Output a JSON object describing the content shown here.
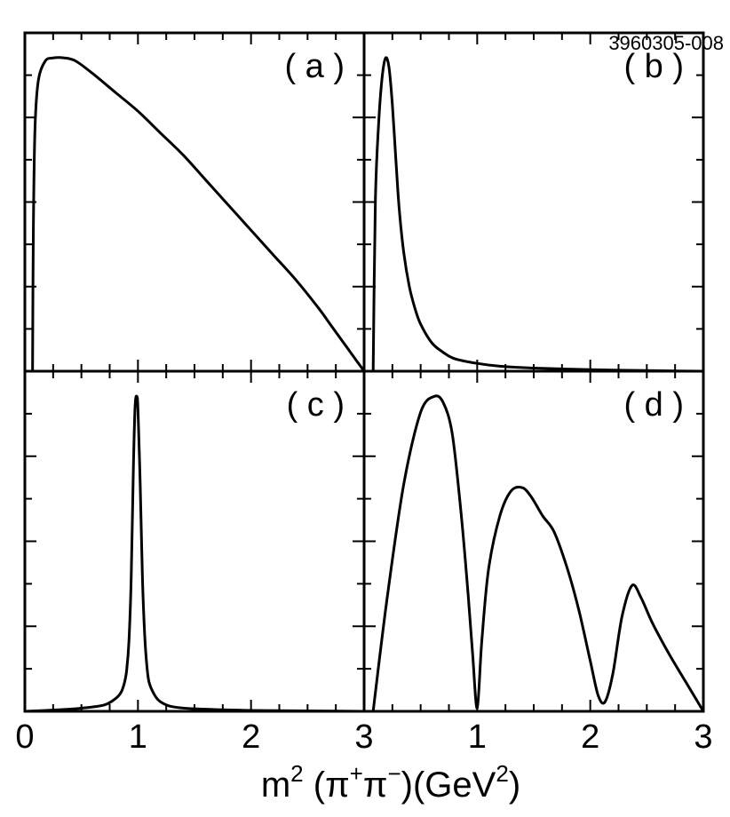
{
  "figure_id": "3960305-008",
  "x_axis": {
    "label": {
      "m": "m",
      "sq": "2",
      "paren": " (π",
      "plus": "+",
      "pi2": "π",
      "minus": "−",
      "close": ")(GeV",
      "sq2": "2",
      "end": ")"
    },
    "tick_labels": [
      "0",
      "1",
      "2",
      "3"
    ]
  },
  "chart_data": [
    {
      "type": "line",
      "panel_label": "( a )",
      "xlim": [
        0,
        3
      ],
      "ylim": [
        0,
        1.08
      ],
      "x": [
        0.068,
        0.075,
        0.09,
        0.12,
        0.18,
        0.25,
        0.35,
        0.45,
        0.6,
        0.8,
        1.0,
        1.2,
        1.4,
        1.6,
        1.8,
        2.0,
        2.2,
        2.4,
        2.6,
        2.7,
        2.8,
        2.9,
        2.95,
        3.0
      ],
      "y": [
        0.0,
        0.45,
        0.78,
        0.93,
        0.99,
        1.0,
        1.0,
        0.99,
        0.95,
        0.89,
        0.83,
        0.76,
        0.69,
        0.61,
        0.53,
        0.45,
        0.37,
        0.29,
        0.2,
        0.15,
        0.1,
        0.05,
        0.025,
        0.0
      ]
    },
    {
      "type": "line",
      "panel_label": "( b )",
      "xlim": [
        0,
        3
      ],
      "ylim": [
        0,
        1.08
      ],
      "x": [
        0.08,
        0.1,
        0.13,
        0.16,
        0.19,
        0.22,
        0.25,
        0.28,
        0.31,
        0.35,
        0.4,
        0.45,
        0.5,
        0.6,
        0.7,
        0.8,
        1.0,
        1.2,
        1.5,
        2.0,
        2.5,
        3.0
      ],
      "y": [
        0.0,
        0.55,
        0.8,
        0.94,
        1.0,
        0.97,
        0.85,
        0.68,
        0.52,
        0.38,
        0.27,
        0.2,
        0.15,
        0.09,
        0.06,
        0.04,
        0.025,
        0.016,
        0.01,
        0.005,
        0.002,
        0.0
      ]
    },
    {
      "type": "line",
      "panel_label": "( c )",
      "xlim": [
        0,
        3
      ],
      "ylim": [
        0,
        1.08
      ],
      "x": [
        0.0,
        0.3,
        0.5,
        0.7,
        0.8,
        0.85,
        0.88,
        0.9,
        0.92,
        0.94,
        0.96,
        0.975,
        0.99,
        1.0,
        1.02,
        1.04,
        1.06,
        1.08,
        1.1,
        1.15,
        1.2,
        1.3,
        1.5,
        2.0,
        3.0
      ],
      "y": [
        0.0,
        0.005,
        0.01,
        0.02,
        0.04,
        0.06,
        0.09,
        0.13,
        0.22,
        0.42,
        0.78,
        0.97,
        1.0,
        0.96,
        0.72,
        0.42,
        0.24,
        0.14,
        0.09,
        0.05,
        0.03,
        0.015,
        0.008,
        0.003,
        0.0
      ]
    },
    {
      "type": "line",
      "panel_label": "( d )",
      "xlim": [
        0,
        3
      ],
      "ylim": [
        0,
        1.08
      ],
      "x": [
        0.08,
        0.2,
        0.35,
        0.5,
        0.62,
        0.7,
        0.78,
        0.86,
        0.92,
        0.96,
        1.0,
        1.04,
        1.1,
        1.2,
        1.3,
        1.4,
        1.48,
        1.58,
        1.68,
        1.8,
        1.9,
        2.0,
        2.07,
        2.13,
        2.2,
        2.28,
        2.37,
        2.45,
        2.55,
        2.7,
        2.85,
        3.0
      ],
      "y": [
        0.0,
        0.35,
        0.72,
        0.95,
        1.0,
        0.98,
        0.88,
        0.62,
        0.37,
        0.18,
        0.01,
        0.22,
        0.45,
        0.62,
        0.7,
        0.71,
        0.68,
        0.62,
        0.57,
        0.45,
        0.32,
        0.16,
        0.05,
        0.03,
        0.12,
        0.3,
        0.4,
        0.36,
        0.28,
        0.18,
        0.09,
        0.0
      ]
    }
  ]
}
